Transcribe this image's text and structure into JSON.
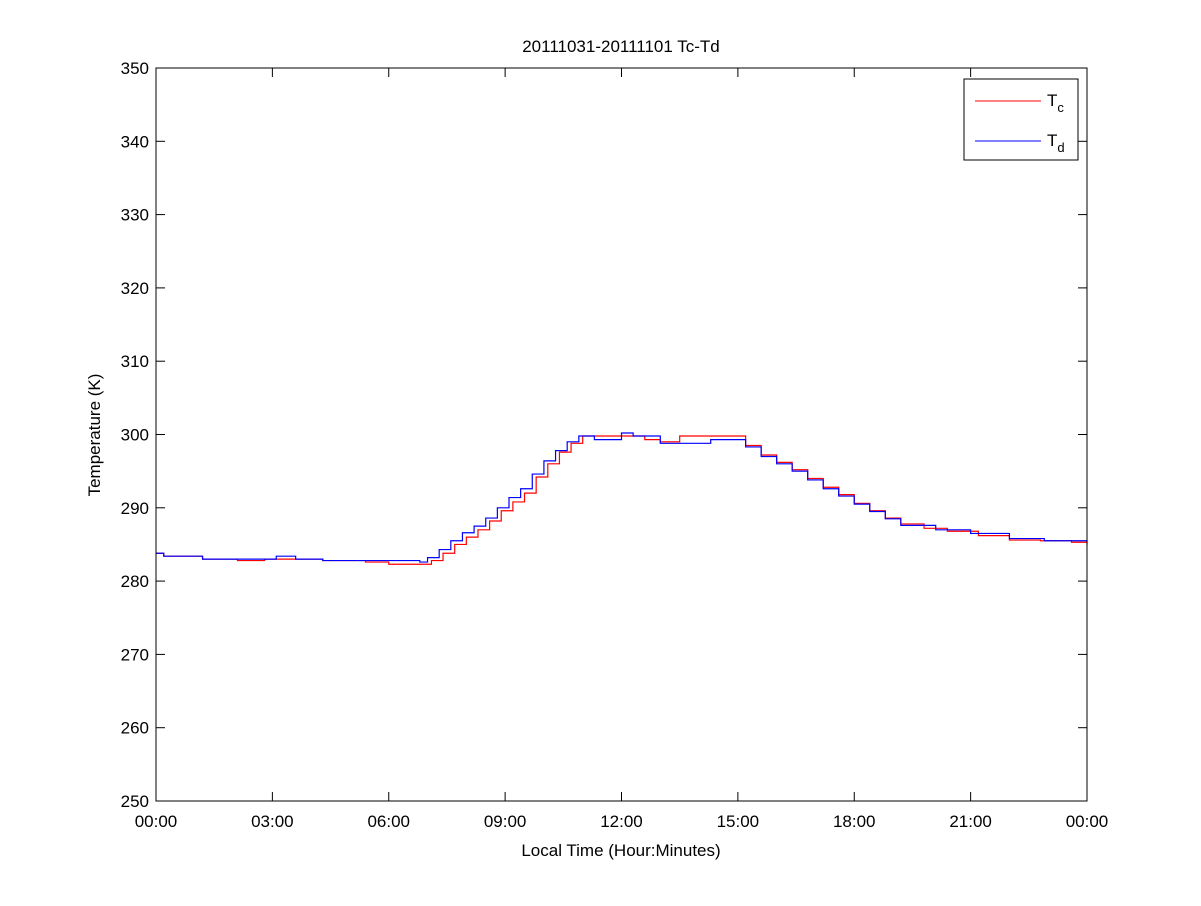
{
  "chart_data": {
    "type": "line",
    "title": "20111031-20111101 Tc-Td",
    "xlabel": "Local Time (Hour:Minutes)",
    "ylabel": "Temperature (K)",
    "xlim": [
      0,
      24
    ],
    "ylim": [
      250,
      350
    ],
    "x_unit": "hours",
    "xticks": [
      0,
      3,
      6,
      9,
      12,
      15,
      18,
      21,
      24
    ],
    "xtick_labels": [
      "00:00",
      "03:00",
      "06:00",
      "09:00",
      "12:00",
      "15:00",
      "18:00",
      "21:00",
      "00:00"
    ],
    "yticks": [
      250,
      260,
      270,
      280,
      290,
      300,
      310,
      320,
      330,
      340,
      350
    ],
    "ytick_labels": [
      "250",
      "260",
      "270",
      "280",
      "290",
      "300",
      "310",
      "320",
      "330",
      "340",
      "350"
    ],
    "grid": false,
    "legend_position": "top-right",
    "step": true,
    "series": [
      {
        "name": "T",
        "subscript": "c",
        "color": "#ff0000",
        "x": [
          0,
          0.2,
          1.2,
          2.1,
          2.8,
          4.3,
          5.4,
          6.0,
          6.8,
          7.1,
          7.4,
          7.7,
          8.0,
          8.3,
          8.6,
          8.9,
          9.2,
          9.5,
          9.8,
          10.1,
          10.4,
          10.7,
          11.0,
          12.0,
          12.6,
          13.0,
          13.5,
          14.4,
          15.2,
          15.6,
          16.0,
          16.4,
          16.8,
          17.2,
          17.6,
          18.0,
          18.4,
          18.8,
          19.2,
          19.8,
          20.4,
          21.2,
          22.0,
          22.8,
          23.6,
          24
        ],
        "y": [
          283.8,
          283.4,
          283.0,
          282.8,
          283.0,
          282.8,
          282.6,
          282.3,
          282.3,
          282.8,
          283.8,
          285.0,
          286.0,
          287.0,
          288.2,
          289.6,
          290.8,
          292.0,
          294.2,
          296.0,
          297.6,
          298.8,
          299.8,
          299.8,
          299.3,
          299.0,
          299.8,
          299.8,
          298.5,
          297.2,
          296.2,
          295.2,
          294.0,
          292.8,
          291.8,
          290.6,
          289.6,
          288.6,
          287.8,
          287.2,
          286.8,
          286.2,
          285.6,
          285.5,
          285.3,
          285.0
        ]
      },
      {
        "name": "T",
        "subscript": "d",
        "color": "#0000ff",
        "x": [
          0,
          0.2,
          1.2,
          2.1,
          3.1,
          3.6,
          4.3,
          5.4,
          6.0,
          6.8,
          7.0,
          7.3,
          7.6,
          7.9,
          8.2,
          8.5,
          8.8,
          9.1,
          9.4,
          9.7,
          10.0,
          10.3,
          10.6,
          10.9,
          11.3,
          12.0,
          12.3,
          13.0,
          14.3,
          15.2,
          15.6,
          16.0,
          16.4,
          16.8,
          17.2,
          17.6,
          18.0,
          18.4,
          18.8,
          19.2,
          20.1,
          21.0,
          22.0,
          22.9,
          24
        ],
        "y": [
          283.8,
          283.4,
          283.0,
          283.0,
          283.4,
          283.0,
          282.8,
          282.8,
          282.8,
          282.6,
          283.2,
          284.3,
          285.5,
          286.6,
          287.5,
          288.6,
          290.0,
          291.4,
          292.6,
          294.6,
          296.4,
          297.8,
          299.0,
          299.8,
          299.3,
          300.2,
          299.8,
          298.8,
          299.3,
          298.3,
          297.0,
          296.0,
          295.0,
          293.8,
          292.6,
          291.6,
          290.5,
          289.5,
          288.5,
          287.6,
          287.0,
          286.5,
          285.8,
          285.5,
          285.3
        ]
      }
    ]
  }
}
